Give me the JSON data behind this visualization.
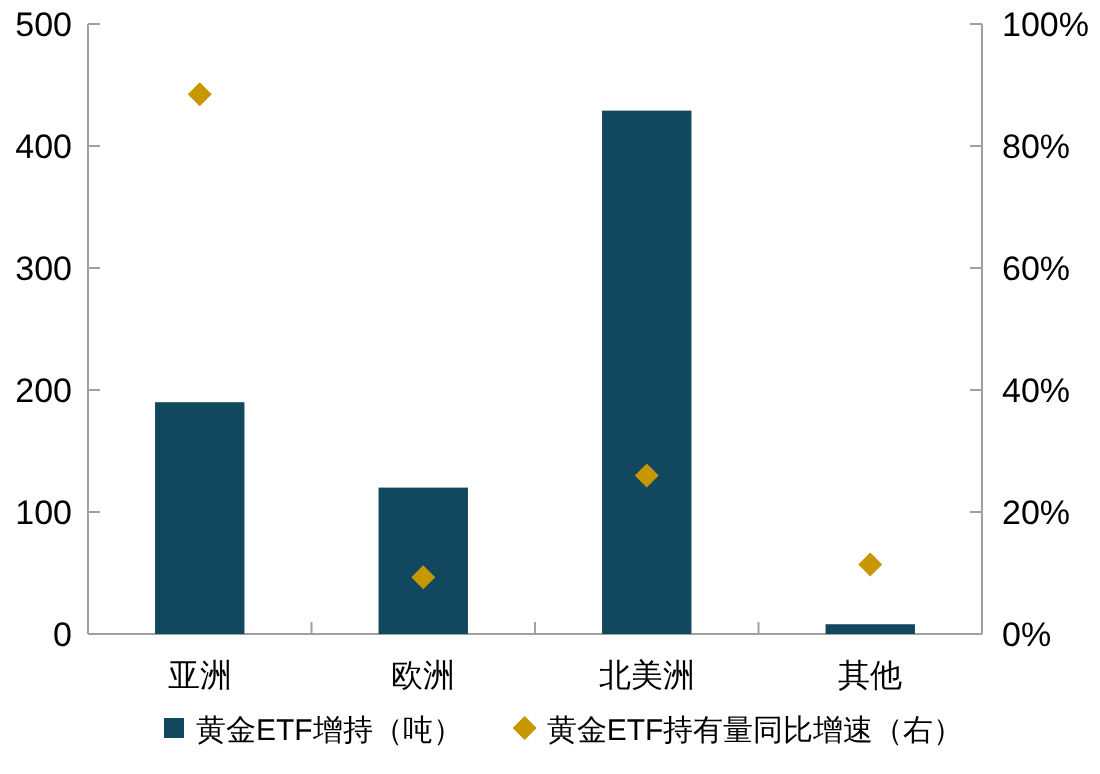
{
  "chart_data": {
    "type": "bar",
    "categories": [
      "亚洲",
      "欧洲",
      "北美洲",
      "其他"
    ],
    "series": [
      {
        "name": "黄金ETF增持（吨）",
        "color": "#11475f",
        "values": [
          190,
          120,
          429,
          8
        ]
      },
      {
        "name": "黄金ETF持有量同比增速（右）",
        "type": "scatter",
        "axis": "y2",
        "marker": "diamond",
        "color": "#c89600",
        "values": [
          88.5,
          9.3,
          26,
          11.4
        ]
      }
    ],
    "ylim": [
      0,
      500
    ],
    "yticks": [
      0,
      100,
      200,
      300,
      400,
      500
    ],
    "y2lim": [
      0,
      100
    ],
    "y2ticks": [
      {
        "value": 0,
        "label": "0%"
      },
      {
        "value": 20,
        "label": "20%"
      },
      {
        "value": 40,
        "label": "40%"
      },
      {
        "value": 60,
        "label": "60%"
      },
      {
        "value": 80,
        "label": "80%"
      },
      {
        "value": 100,
        "label": "100%"
      }
    ],
    "legend": "bottom"
  }
}
